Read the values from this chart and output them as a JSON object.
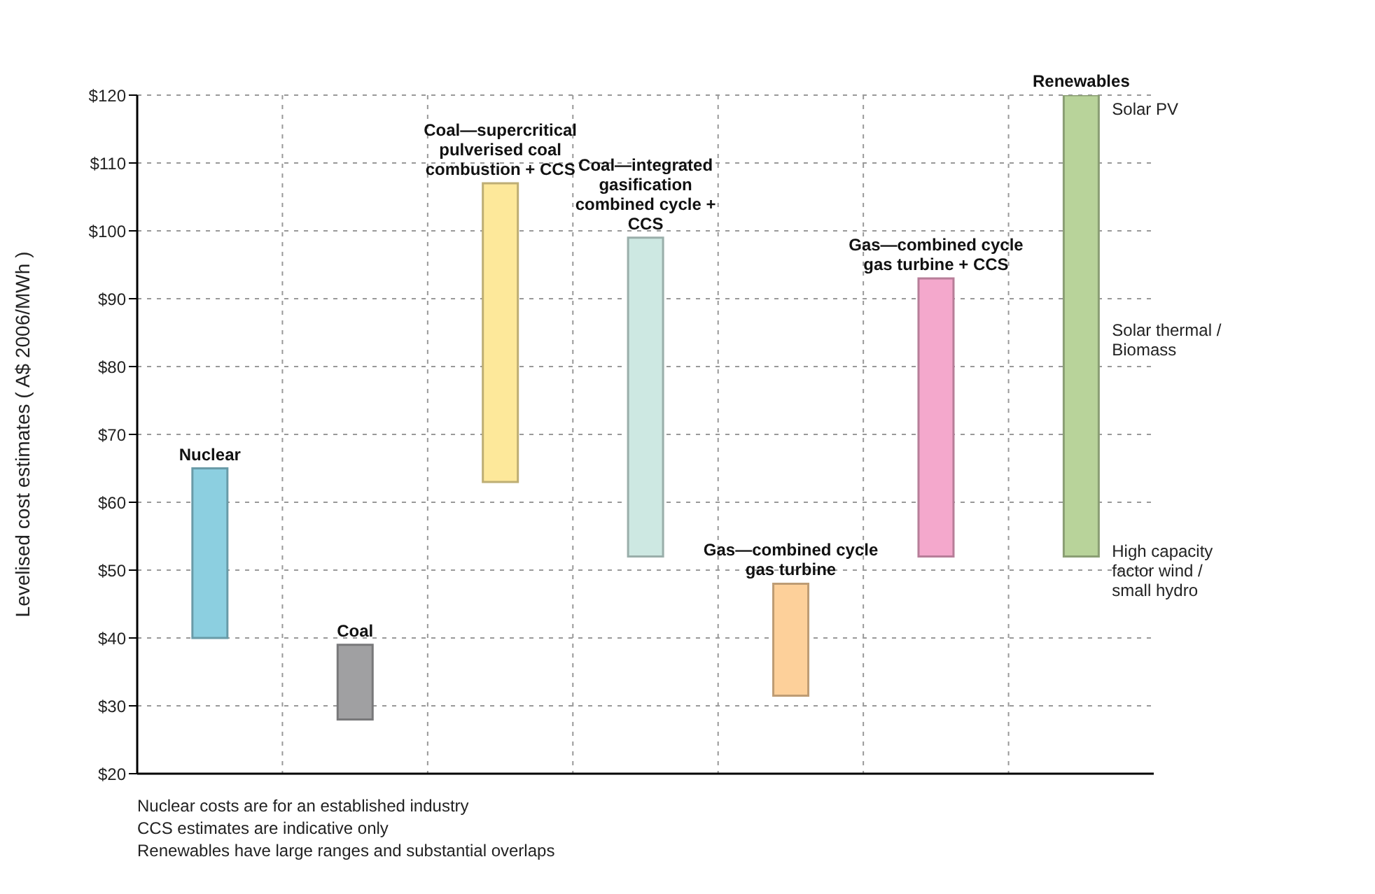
{
  "chart_data": {
    "type": "bar",
    "ylabel": "Levelised cost estimates ( A$ 2006/MWh )",
    "categories": [
      "Nuclear",
      "Coal",
      "Coal—supercritical pulverised coal combustion + CCS",
      "Coal—integrated gasification combined cycle + CCS",
      "Gas—combined cycle gas turbine",
      "Gas—combined cycle gas turbine + CCS",
      "Renewables"
    ],
    "base": [
      40,
      28,
      63,
      52,
      31.5,
      52,
      52
    ],
    "values": [
      25,
      11,
      44,
      47,
      16.5,
      41,
      68
    ],
    "colors": [
      "#8ccfe0",
      "#a0a0a2",
      "#fde89a",
      "#cde8e2",
      "#fdd09a",
      "#f4a8cc",
      "#b8d39a"
    ],
    "ylim": [
      20,
      120
    ],
    "yticks": [
      {
        "value": 20,
        "label": "$20"
      },
      {
        "value": 30,
        "label": "$30"
      },
      {
        "value": 40,
        "label": "$40"
      },
      {
        "value": 50,
        "label": "$50"
      },
      {
        "value": 60,
        "label": "$60"
      },
      {
        "value": 70,
        "label": "$70"
      },
      {
        "value": 80,
        "label": "$80"
      },
      {
        "value": 90,
        "label": "$90"
      },
      {
        "value": 100,
        "label": "$100"
      },
      {
        "value": 110,
        "label": "$110"
      },
      {
        "value": 120,
        "label": "$120"
      }
    ],
    "grid": true,
    "annotations": [
      "Solar PV",
      "Solar thermal / Biomass",
      "High capacity factor wind / small hydro",
      "Nuclear costs are for an established industry",
      "CCS estimates are indicative only",
      "Renewables have large ranges and substantial overlaps"
    ]
  }
}
